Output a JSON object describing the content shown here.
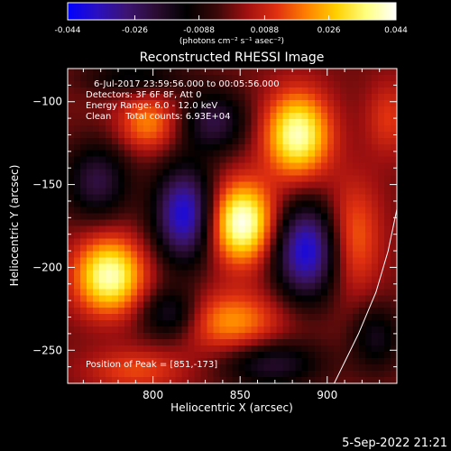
{
  "chart_data": {
    "type": "heatmap",
    "title": "Reconstructed RHESSI Image",
    "xlabel": "Heliocentric X (arcsec)",
    "ylabel": "Heliocentric Y (arcsec)",
    "xlim": [
      751,
      940
    ],
    "ylim": [
      -270,
      -80
    ],
    "x_ticks": [
      800,
      850,
      900
    ],
    "y_ticks": [
      -100,
      -150,
      -200,
      -250
    ],
    "colorbar": {
      "range": [
        -0.044,
        0.044
      ],
      "tick_values": [
        -0.044,
        -0.026,
        -0.0088,
        0.0088,
        0.026,
        0.044
      ],
      "tick_labels": [
        "-0.044",
        "-0.026",
        "-0.0088",
        "0.0088",
        "0.026",
        "0.044"
      ],
      "unit_label": "(photons cm⁻² s⁻¹ asec⁻²)"
    },
    "colormap": [
      "#0000ff",
      "#2a10c0",
      "#3c1470",
      "#2a0c30",
      "#000000",
      "#3a0808",
      "#a01010",
      "#e03010",
      "#ff8000",
      "#ffd000",
      "#ffff80",
      "#ffffff"
    ],
    "annotations": [
      "6-Jul-2017 23:59:56.000 to 00:05:56.000",
      "Detectors: 3F 6F 8F, Att 0",
      "Energy Range: 6.0 - 12.0 keV",
      "Clean     Total counts: 6.93E+04",
      "Position of Peak = [851,-173]"
    ],
    "peak": [
      851,
      -173
    ],
    "limb_points": [
      [
        904,
        -270
      ],
      [
        918,
        -240
      ],
      [
        928,
        -215
      ],
      [
        935,
        -190
      ],
      [
        941,
        -160
      ],
      [
        946,
        -130
      ],
      [
        952,
        -100
      ],
      [
        958,
        -80
      ]
    ],
    "blobs": [
      {
        "x": 851,
        "y": -173,
        "amp": 0.044,
        "sx": 13,
        "sy": 17
      },
      {
        "x": 775,
        "y": -205,
        "amp": 0.04,
        "sx": 14,
        "sy": 16
      },
      {
        "x": 883,
        "y": -120,
        "amp": 0.04,
        "sx": 13,
        "sy": 18
      },
      {
        "x": 845,
        "y": -233,
        "amp": 0.022,
        "sx": 20,
        "sy": 13
      },
      {
        "x": 797,
        "y": -113,
        "amp": 0.02,
        "sx": 12,
        "sy": 12
      },
      {
        "x": 915,
        "y": -182,
        "amp": 0.018,
        "sx": 11,
        "sy": 24
      },
      {
        "x": 790,
        "y": -262,
        "amp": 0.014,
        "sx": 20,
        "sy": 9
      },
      {
        "x": 935,
        "y": -110,
        "amp": 0.012,
        "sx": 9,
        "sy": 16
      },
      {
        "x": 818,
        "y": -168,
        "amp": -0.04,
        "sx": 12,
        "sy": 20
      },
      {
        "x": 888,
        "y": -190,
        "amp": -0.04,
        "sx": 13,
        "sy": 20
      },
      {
        "x": 835,
        "y": -112,
        "amp": -0.022,
        "sx": 13,
        "sy": 13
      },
      {
        "x": 768,
        "y": -148,
        "amp": -0.022,
        "sx": 13,
        "sy": 16
      },
      {
        "x": 868,
        "y": -258,
        "amp": -0.02,
        "sx": 20,
        "sy": 10
      },
      {
        "x": 810,
        "y": -228,
        "amp": -0.02,
        "sx": 12,
        "sy": 11
      },
      {
        "x": 928,
        "y": -242,
        "amp": -0.016,
        "sx": 10,
        "sy": 14
      },
      {
        "x": 790,
        "y": -85,
        "amp": -0.014,
        "sx": 20,
        "sy": 7
      }
    ],
    "grid": false
  },
  "footer": {
    "timestamp": "5-Sep-2022 21:21"
  }
}
